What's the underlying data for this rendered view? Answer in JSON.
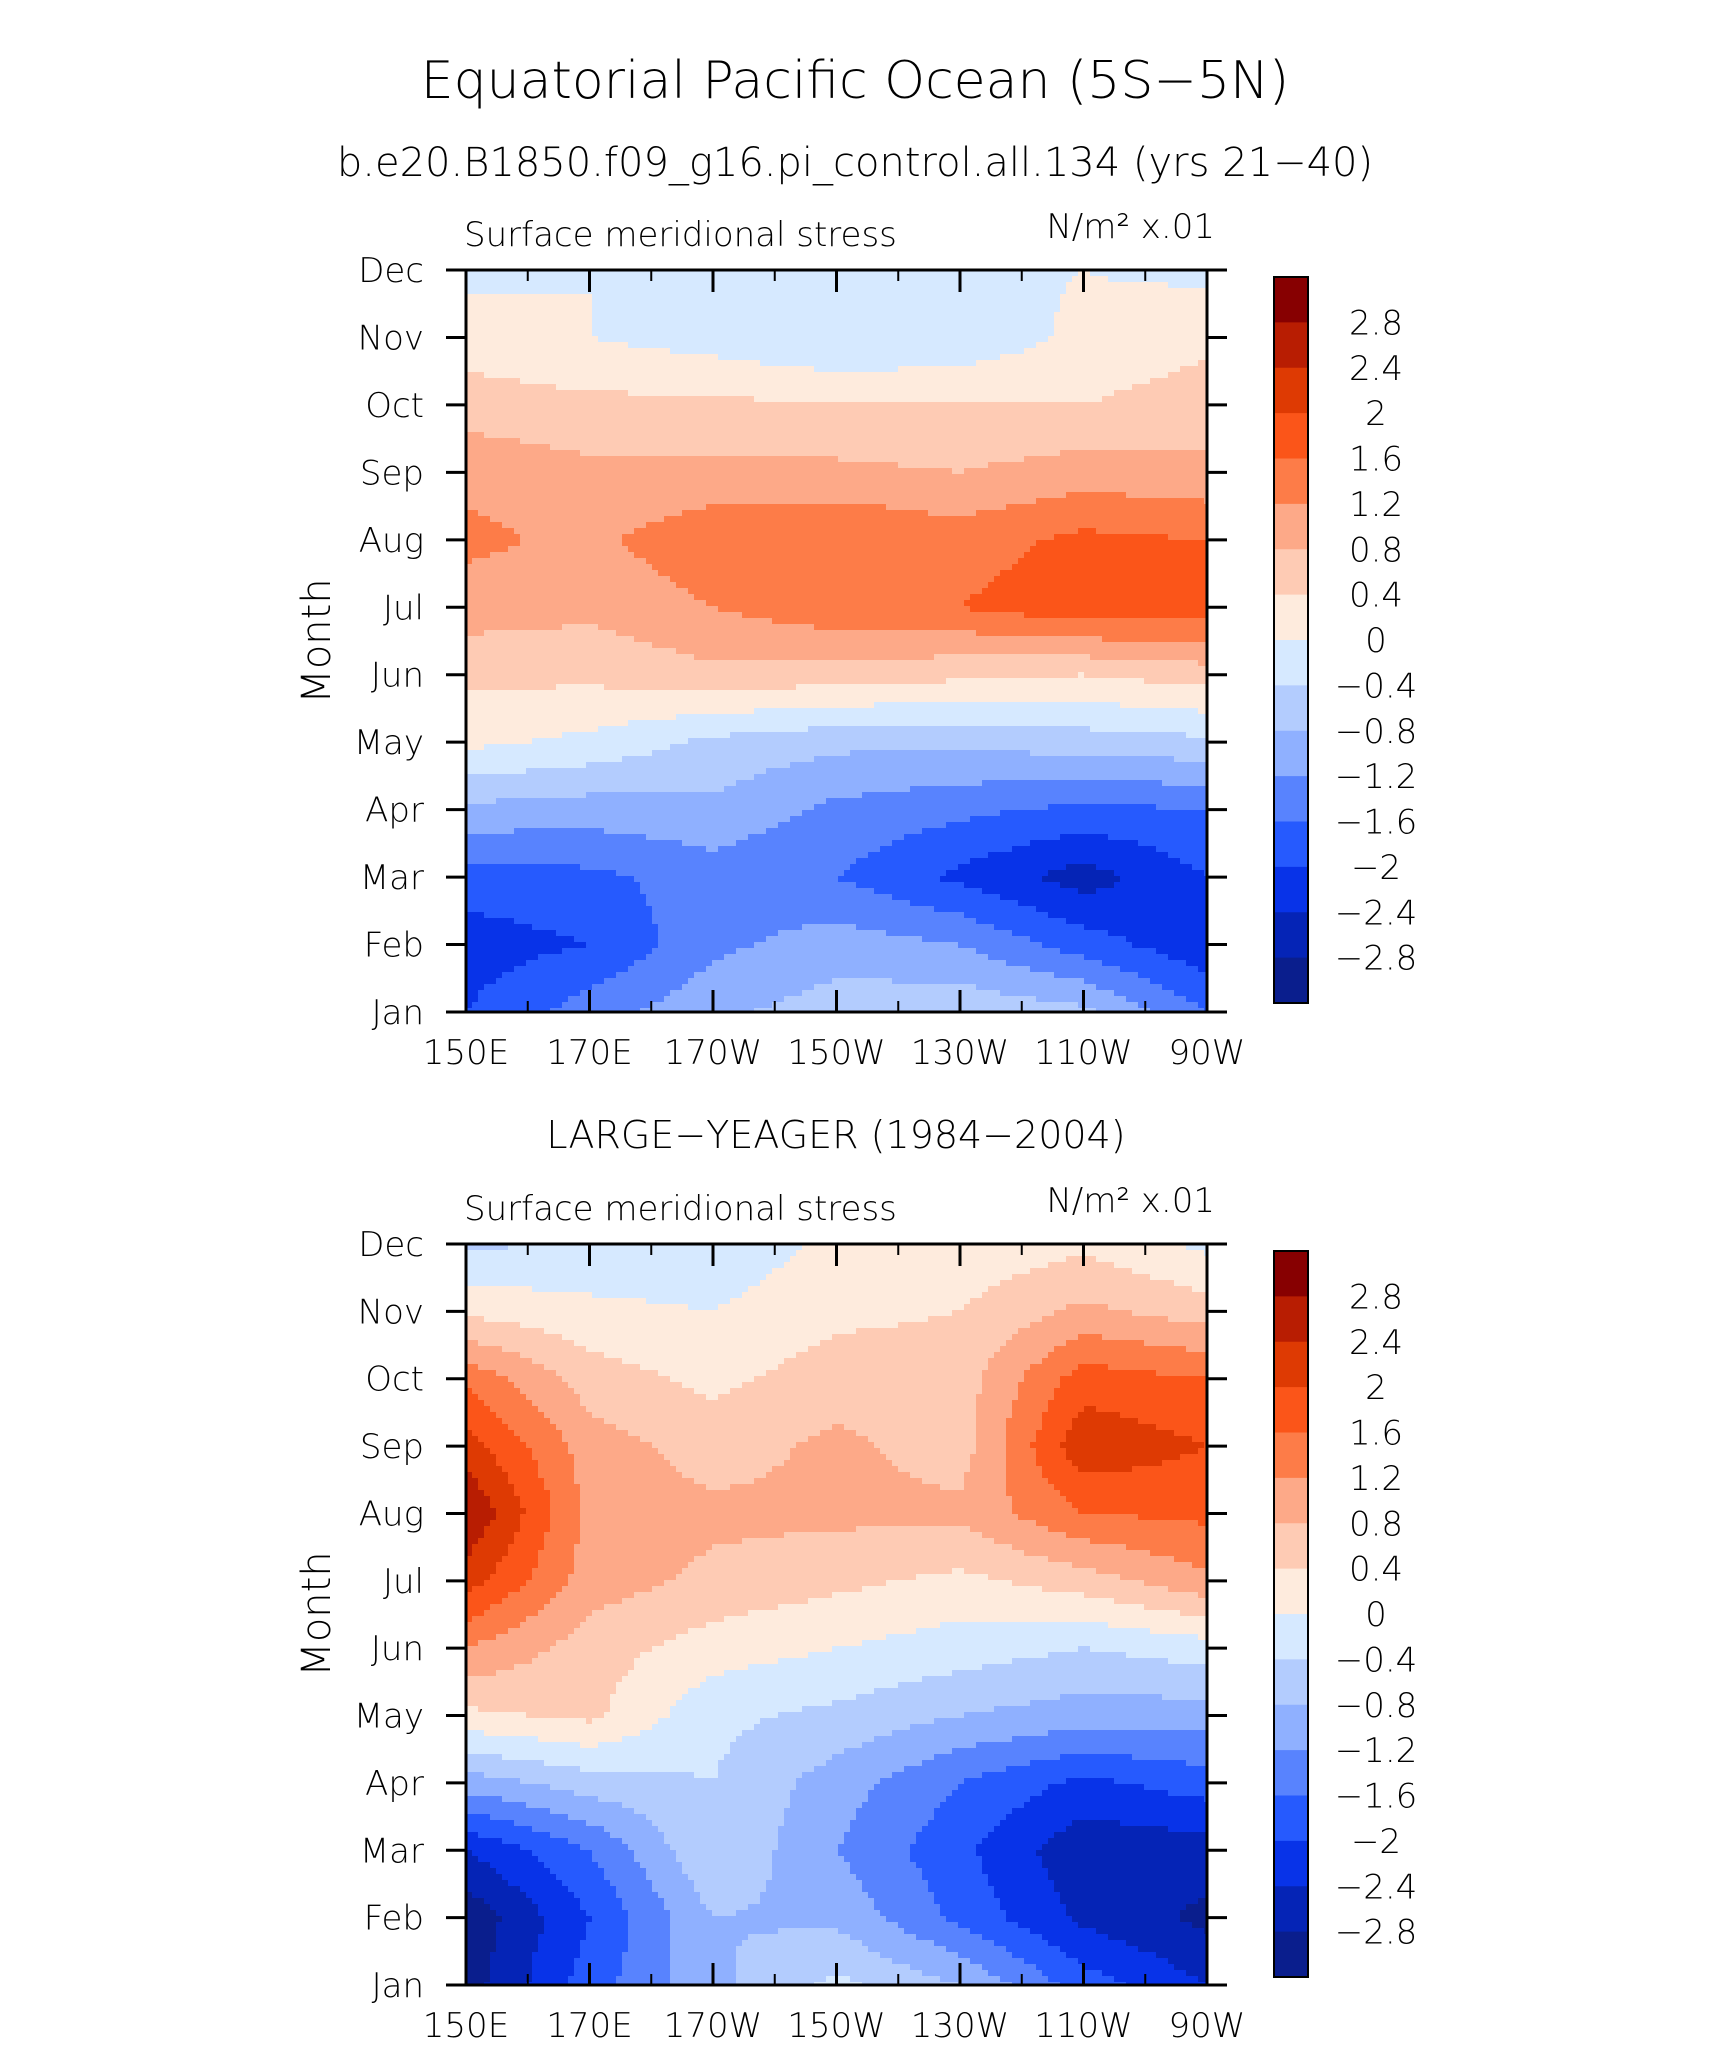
{
  "figure": {
    "title": "Equatorial Pacific Ocean (5S−5N)",
    "subtitle": "b.e20.B1850.f09_g16.pi_control.all.134 (yrs 21−40)"
  },
  "chart_data": [
    {
      "type": "heatmap",
      "panel_title": "",
      "left_label": "Surface meridional stress",
      "units_label": "N/m² x.01",
      "ylabel": "Month",
      "xlabel": "",
      "x": [
        "150E",
        "170E",
        "170W",
        "150W",
        "130W",
        "110W",
        "90W"
      ],
      "y": [
        "Jan",
        "Feb",
        "Mar",
        "Apr",
        "May",
        "Jun",
        "Jul",
        "Aug",
        "Sep",
        "Oct",
        "Nov",
        "Dec"
      ],
      "grid": false,
      "values": [
        [
          -2.0,
          -1.4,
          -0.9,
          -0.6,
          -0.5,
          -0.7,
          -1.6
        ],
        [
          -2.2,
          -2.0,
          -1.3,
          -1.0,
          -1.2,
          -1.8,
          -2.3
        ],
        [
          -1.8,
          -1.7,
          -1.4,
          -1.6,
          -2.1,
          -2.6,
          -2.0
        ],
        [
          -0.9,
          -1.0,
          -0.9,
          -1.3,
          -1.5,
          -1.7,
          -1.6
        ],
        [
          0.1,
          -0.1,
          -0.5,
          -0.7,
          -0.7,
          -0.6,
          -0.5
        ],
        [
          0.5,
          0.5,
          0.7,
          0.6,
          0.5,
          0.4,
          0.6
        ],
        [
          1.0,
          0.9,
          1.2,
          1.5,
          1.6,
          1.9,
          1.8
        ],
        [
          1.3,
          1.1,
          1.5,
          1.6,
          1.4,
          1.7,
          1.6
        ],
        [
          1.1,
          0.9,
          0.9,
          0.9,
          0.8,
          1.0,
          0.9
        ],
        [
          0.6,
          0.5,
          0.5,
          0.4,
          0.4,
          0.4,
          0.6
        ],
        [
          0.2,
          0.0,
          -0.2,
          -0.4,
          -0.3,
          0.1,
          0.3
        ],
        [
          -0.1,
          0.0,
          -0.1,
          -0.2,
          -0.1,
          0.0,
          -0.1
        ]
      ]
    },
    {
      "type": "heatmap",
      "panel_title": "LARGE−YEAGER (1984−2004)",
      "left_label": "Surface meridional stress",
      "units_label": "N/m² x.01",
      "ylabel": "Month",
      "xlabel": "",
      "x": [
        "150E",
        "170E",
        "170W",
        "150W",
        "130W",
        "110W",
        "90W"
      ],
      "y": [
        "Jan",
        "Feb",
        "Mar",
        "Apr",
        "May",
        "Jun",
        "Jul",
        "Aug",
        "Sep",
        "Oct",
        "Nov",
        "Dec"
      ],
      "grid": false,
      "values": [
        [
          -3.0,
          -1.8,
          -0.9,
          -0.3,
          -0.8,
          -1.8,
          -2.4
        ],
        [
          -3.1,
          -2.0,
          -0.8,
          -0.9,
          -1.7,
          -2.5,
          -2.9
        ],
        [
          -2.4,
          -1.6,
          -0.4,
          -1.2,
          -1.9,
          -2.7,
          -2.6
        ],
        [
          -1.0,
          -0.6,
          -0.4,
          -1.0,
          -1.6,
          -2.1,
          -1.8
        ],
        [
          0.3,
          0.5,
          -0.3,
          -0.5,
          -0.8,
          -1.0,
          -1.0
        ],
        [
          1.2,
          0.6,
          0.2,
          0.0,
          -0.2,
          -0.4,
          -0.2
        ],
        [
          2.2,
          1.0,
          0.7,
          0.5,
          0.3,
          0.6,
          1.1
        ],
        [
          2.8,
          1.1,
          0.9,
          0.9,
          0.9,
          1.6,
          1.7
        ],
        [
          2.2,
          1.0,
          0.6,
          0.9,
          0.6,
          2.3,
          2.0
        ],
        [
          1.5,
          0.6,
          0.3,
          0.6,
          0.6,
          1.8,
          1.6
        ],
        [
          0.3,
          0.1,
          0.0,
          0.3,
          0.4,
          0.9,
          0.6
        ],
        [
          -0.5,
          -0.3,
          -0.3,
          0.1,
          0.1,
          0.3,
          -0.1
        ]
      ]
    }
  ],
  "colorbar": {
    "labels": [
      "2.8",
      "2.4",
      "2",
      "1.6",
      "1.2",
      "0.8",
      "0.4",
      "0",
      "−0.4",
      "−0.8",
      "−1.2",
      "−1.6",
      "−2",
      "−2.4",
      "−2.8"
    ],
    "levels": [
      2.8,
      2.4,
      2.0,
      1.6,
      1.2,
      0.8,
      0.4,
      0,
      -0.4,
      -0.8,
      -1.2,
      -1.6,
      -2.0,
      -2.4,
      -2.8
    ],
    "colors_top_to_bottom": [
      "#870001",
      "#b81d02",
      "#de3a03",
      "#fb5519",
      "#fd7c48",
      "#fda988",
      "#fecbb4",
      "#feebdd",
      "#d6e9ff",
      "#b3ccfe",
      "#8fb0ff",
      "#5883fe",
      "#265afe",
      "#0833e8",
      "#0524b6",
      "#0a1e8d"
    ]
  }
}
